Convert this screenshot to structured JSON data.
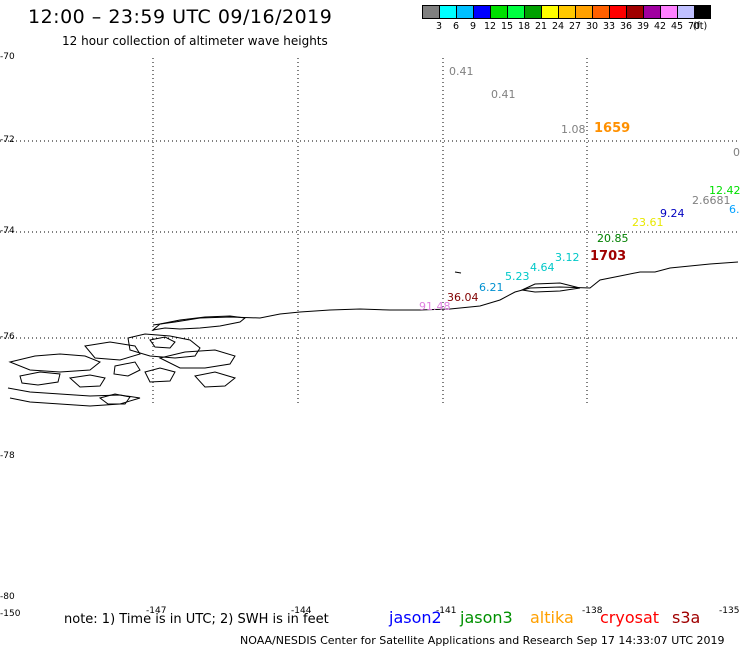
{
  "header": {
    "title": "12:00 – 23:59 UTC 09/16/2019",
    "subtitle": "12 hour collection of altimeter wave heights"
  },
  "colorbar": {
    "colors": [
      "#808080",
      "#00ffff",
      "#00c0ff",
      "#0000ff",
      "#00e000",
      "#00ff40",
      "#00a000",
      "#ffff00",
      "#ffc800",
      "#ffa000",
      "#ff6000",
      "#ff0000",
      "#a00000",
      "#a000a0",
      "#ff80ff",
      "#c0c0ff",
      "#000000"
    ],
    "labels": [
      "3",
      "6",
      "9",
      "12",
      "15",
      "18",
      "21",
      "24",
      "27",
      "30",
      "33",
      "36",
      "39",
      "42",
      "45",
      "70",
      "(ft)"
    ]
  },
  "axes": {
    "lat_labels": [
      "-70",
      "-72",
      "-74",
      "-76",
      "-78",
      "-80"
    ],
    "lon_labels": [
      "-150",
      "-147",
      "-144",
      "-141",
      "-138",
      "-135"
    ]
  },
  "observations": [
    {
      "text": "0.41",
      "color": "#808080"
    },
    {
      "text": "0.41",
      "color": "#808080"
    },
    {
      "text": "1.08",
      "color": "#808080"
    },
    {
      "text": "0",
      "color": "#808080"
    },
    {
      "text": "12.42",
      "color": "#00e000"
    },
    {
      "text": "2.6681",
      "color": "#808080"
    },
    {
      "text": "6.",
      "color": "#00a0ff"
    },
    {
      "text": "9.24",
      "color": "#0000c0"
    },
    {
      "text": "23.61",
      "color": "#e8e800"
    },
    {
      "text": "20.85",
      "color": "#008000"
    },
    {
      "text": "3.12",
      "color": "#00c8c8"
    },
    {
      "text": "4.64",
      "color": "#00c8c8"
    },
    {
      "text": "5.23",
      "color": "#00c8c8"
    },
    {
      "text": "6.21",
      "color": "#0090d0"
    },
    {
      "text": "36.04",
      "color": "#800000"
    },
    {
      "text": "91.48",
      "color": "#e080e0"
    }
  ],
  "pass_times": [
    {
      "text": "1659",
      "color": "#ff9000"
    },
    {
      "text": "1703",
      "color": "#a00000"
    }
  ],
  "footer": {
    "note": "note:  1) Time is in UTC;  2) SWH is in feet",
    "satellites": [
      {
        "name": "jason2",
        "color": "#0000ff"
      },
      {
        "name": "jason3",
        "color": "#009000"
      },
      {
        "name": "altika",
        "color": "#ffa000"
      },
      {
        "name": "cryosat",
        "color": "#ff0000"
      },
      {
        "name": "s3a",
        "color": "#a00000"
      }
    ],
    "credit": "NOAA/NESDIS Center for Satellite Applications and Research    Sep 17 14:33:07 UTC 2019"
  }
}
